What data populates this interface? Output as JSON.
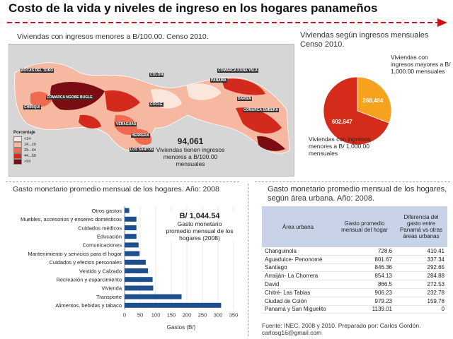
{
  "main_title": "Costo de la vida y niveles de ingreso en los hogares panameños",
  "colors": {
    "accent": "#c0181b",
    "bar": "#1f4e8c",
    "pie_dark": "#d42b1a",
    "pie_light": "#f7a21d",
    "table_header": "#c8d3e8"
  },
  "map": {
    "title": "Viviendas con ingresos menores a B/100.00. Censo 2010.",
    "legend_title": "Porcentaje",
    "legend": [
      {
        "label": "<14",
        "color": "#fbe6dc"
      },
      {
        "label": "14...29",
        "color": "#f7b8a2"
      },
      {
        "label": "29...44",
        "color": "#ef6b50"
      },
      {
        "label": "44...59",
        "color": "#d32a1e"
      },
      {
        "label": ">59",
        "color": "#7a0d12"
      }
    ],
    "callout_value": "94,061",
    "callout_text": "Viviendas tienen ingresos menores a B/100.00 mensuales",
    "region_labels": [
      "BOCAS DEL TORO",
      "COMARCA NGOBE BUGLE",
      "CHIRIQUI",
      "VERAGUAS",
      "HERRERA",
      "LOS SANTOS",
      "COCLE",
      "PANAMA",
      "COLON",
      "COMARCA KUNA YALA",
      "DARIEN",
      "COMARCA EMBERA"
    ]
  },
  "pie": {
    "title": "Viviendas según ingresos mensuales Censo 2010.",
    "label_above": "Viviendas con ingresos mayores a B/ 1,000.00 mensuales",
    "label_below": "Viviendas con ingresos menores a B/ 1,000.00 mensuales"
  },
  "bar": {
    "title": "Gasto monetario promedio mensual de los hogares. Año: 2008",
    "annot_value": "B/ 1,044.54",
    "annot_text": "Gasto monetario promedio mensual de los hogares (2008)"
  },
  "table": {
    "title": "Gasto monetario promedio mensual de los hogares, según área urbana. Año: 2008.",
    "headers": [
      "Área urbana",
      "Gasto promedio mensual del hogar",
      "Diferencia del gasto entre Panamá vs otras áreas urbanas"
    ],
    "rows": [
      [
        "Changuinola",
        "728.6",
        "410.41"
      ],
      [
        "Aguadulce- Penonomé",
        "801.67",
        "337.34"
      ],
      [
        "Santiago",
        "846.36",
        "292.65"
      ],
      [
        "Arraiján- La Chorrera",
        "854.13",
        "284.88"
      ],
      [
        "David",
        "866.5",
        "272.53"
      ],
      [
        "Chitré- Las Tablas",
        "906.23",
        "232.78"
      ],
      [
        "Ciudad de Colón",
        "979.23",
        "159.78"
      ],
      [
        "Panamá y San Miguelito",
        "1139.01",
        "0"
      ]
    ]
  },
  "source": "Fuente: INEC, 2008 y 2010. Preparado por: Carlos Gordón. carlosg16@gmail.com",
  "chart_data": [
    {
      "type": "pie",
      "title": "Viviendas según ingresos mensuales Censo 2010.",
      "slices": [
        {
          "name": "Viviendas con ingresos mayores a B/ 1,000.00 mensuales",
          "value": 268484,
          "label": "268,484",
          "color": "#f7a21d"
        },
        {
          "name": "Viviendas con ingresos menores a B/ 1,000.00 mensuales",
          "value": 602847,
          "label": "602,847",
          "color": "#d42b1a"
        }
      ]
    },
    {
      "type": "bar",
      "orientation": "horizontal",
      "title": "Gasto monetario promedio mensual de los hogares. Año: 2008",
      "xlabel": "Gastos (B/)",
      "ylabel": "",
      "xlim": [
        0,
        350
      ],
      "xticks": [
        0,
        50,
        100,
        150,
        200,
        250,
        300,
        350
      ],
      "grid": true,
      "categories": [
        "Otros gastos",
        "Muebles, accesorios y enseres domésticos",
        "Cuidados médicos",
        "Educación",
        "Comunicaciones",
        "Mantenimiento y servicios para el hogar",
        "Cuidados y efectos personales",
        "Vestido y Calzado",
        "Recreación y esparcimiento",
        "Vivienda",
        "Transporte",
        "Alimentos, bebidas y tabaco"
      ],
      "values": [
        15,
        38,
        38,
        38,
        45,
        48,
        68,
        75,
        90,
        92,
        183,
        310
      ]
    },
    {
      "type": "table",
      "title": "Gasto monetario promedio mensual de los hogares, según área urbana. Año: 2008.",
      "columns": [
        "Área urbana",
        "Gasto promedio mensual del hogar",
        "Diferencia del gasto entre Panamá vs otras áreas urbanas"
      ],
      "rows": [
        [
          "Changuinola",
          728.6,
          410.41
        ],
        [
          "Aguadulce- Penonomé",
          801.67,
          337.34
        ],
        [
          "Santiago",
          846.36,
          292.65
        ],
        [
          "Arraiján- La Chorrera",
          854.13,
          284.88
        ],
        [
          "David",
          866.5,
          272.53
        ],
        [
          "Chitré- Las Tablas",
          906.23,
          232.78
        ],
        [
          "Ciudad de Colón",
          979.23,
          159.78
        ],
        [
          "Panamá y San Miguelito",
          1139.01,
          0
        ]
      ]
    }
  ]
}
